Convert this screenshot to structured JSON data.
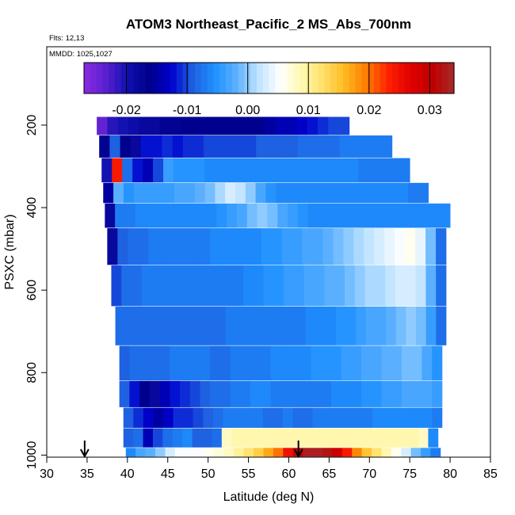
{
  "title": "ATOM3 Northeast_Pacific_2 MS_Abs_700nm",
  "info": [
    "Flts: 12,13",
    "MMDD: 1025,1027"
  ],
  "chart_data": {
    "type": "heatmap",
    "xlabel": "Latitude (deg N)",
    "ylabel": "PSXC (mbar)",
    "xlim": [
      30,
      85
    ],
    "ylim": [
      1005,
      10
    ],
    "xticks": [
      30,
      35,
      40,
      45,
      50,
      55,
      60,
      65,
      70,
      75,
      80,
      85
    ],
    "yticks": [
      200,
      400,
      600,
      800,
      1000
    ],
    "colorbar": {
      "range": [
        -0.027,
        0.034
      ],
      "ticks": [
        -0.02,
        -0.01,
        0.0,
        0.01,
        0.02,
        0.03
      ],
      "tick_labels": [
        "-0.02",
        "-0.01",
        "0.00",
        "0.01",
        "0.02",
        "0.03"
      ],
      "colors": [
        "#8a2be2",
        "#5a20d0",
        "#1010b0",
        "#00008b",
        "#0000cd",
        "#1e60e0",
        "#1e90ff",
        "#5cb0ff",
        "#bfe3ff",
        "#ffffff",
        "#fff8b0",
        "#ffe066",
        "#ffb820",
        "#ff7a00",
        "#ff2000",
        "#e00000",
        "#c00000",
        "#a52a2a"
      ]
    },
    "arrows": [
      34.7,
      61.2
    ],
    "bands": [
      {
        "p": 200,
        "lat_start": 36.2,
        "lat_end": 67.5,
        "values": [
          -0.024,
          -0.021,
          -0.02,
          -0.019,
          -0.018,
          -0.018,
          -0.017,
          -0.017,
          -0.016,
          -0.016,
          -0.016,
          -0.016,
          -0.016,
          -0.016,
          -0.016,
          -0.016,
          -0.015,
          -0.014,
          -0.014,
          -0.013,
          -0.012,
          -0.011,
          -0.01,
          -0.01
        ]
      },
      {
        "p": 250,
        "lat_start": 36.5,
        "lat_end": 72.8,
        "values": [
          -0.017,
          -0.009,
          -0.016,
          -0.018,
          -0.012,
          -0.012,
          -0.011,
          -0.012,
          -0.011,
          -0.011,
          -0.01,
          -0.01,
          -0.01,
          -0.01,
          -0.01,
          -0.009,
          -0.009,
          -0.009,
          -0.009,
          -0.008,
          -0.008,
          -0.008,
          -0.008,
          -0.007,
          -0.007,
          -0.007,
          -0.007,
          -0.007
        ]
      },
      {
        "p": 310,
        "lat_start": 36.8,
        "lat_end": 75.0,
        "values": [
          -0.02,
          0.024,
          -0.008,
          -0.012,
          -0.014,
          -0.01,
          -0.004,
          -0.005,
          -0.005,
          -0.005,
          -0.006,
          -0.006,
          -0.006,
          -0.006,
          -0.006,
          -0.006,
          -0.006,
          -0.006,
          -0.006,
          -0.006,
          -0.006,
          -0.006,
          -0.006,
          -0.006,
          -0.006,
          -0.007,
          -0.007,
          -0.007,
          -0.007,
          -0.007
        ]
      },
      {
        "p": 370,
        "lat_start": 37.0,
        "lat_end": 77.3,
        "values": [
          -0.015,
          -0.002,
          -0.005,
          -0.004,
          -0.004,
          -0.004,
          -0.004,
          -0.003,
          -0.003,
          -0.002,
          -0.001,
          0.001,
          0.003,
          0.002,
          0.0,
          -0.003,
          -0.005,
          -0.006,
          -0.006,
          -0.006,
          -0.006,
          -0.006,
          -0.006,
          -0.006,
          -0.006,
          -0.006,
          -0.006,
          -0.006,
          -0.006,
          -0.006,
          -0.007,
          -0.007
        ]
      },
      {
        "p": 410,
        "lat_start": 37.2,
        "lat_end": 80.0,
        "values": [
          -0.018,
          -0.007,
          -0.007,
          -0.006,
          -0.006,
          -0.006,
          -0.006,
          -0.006,
          -0.006,
          -0.006,
          -0.006,
          -0.005,
          -0.004,
          -0.003,
          -0.001,
          0.0,
          -0.001,
          -0.003,
          -0.004,
          -0.005,
          -0.006,
          -0.006,
          -0.006,
          -0.006,
          -0.006,
          -0.006,
          -0.006,
          -0.006,
          -0.006,
          -0.006,
          -0.006,
          -0.006,
          -0.006,
          -0.006
        ]
      },
      {
        "p": 490,
        "lat_start": 37.5,
        "lat_end": 79.5,
        "values": [
          -0.018,
          -0.009,
          -0.008,
          -0.008,
          -0.007,
          -0.007,
          -0.007,
          -0.007,
          -0.007,
          -0.007,
          -0.006,
          -0.006,
          -0.006,
          -0.006,
          -0.006,
          -0.005,
          -0.005,
          -0.004,
          -0.004,
          -0.003,
          -0.003,
          -0.002,
          -0.001,
          0.0,
          0.001,
          0.002,
          0.003,
          0.004,
          0.005,
          0.006,
          0.004,
          -0.001,
          -0.008
        ]
      },
      {
        "p": 590,
        "lat_start": 38.0,
        "lat_end": 79.5,
        "values": [
          -0.01,
          -0.008,
          -0.008,
          -0.007,
          -0.007,
          -0.007,
          -0.007,
          -0.007,
          -0.007,
          -0.007,
          -0.007,
          -0.007,
          -0.007,
          -0.006,
          -0.006,
          -0.005,
          -0.005,
          -0.004,
          -0.004,
          -0.003,
          -0.003,
          -0.002,
          -0.002,
          -0.001,
          0.0,
          0.001,
          0.001,
          0.002,
          0.003,
          0.003,
          0.002,
          -0.002,
          -0.008
        ]
      },
      {
        "p": 690,
        "lat_start": 38.5,
        "lat_end": 79.5,
        "values": [
          -0.008,
          -0.008,
          -0.008,
          -0.008,
          -0.008,
          -0.008,
          -0.008,
          -0.008,
          -0.008,
          -0.008,
          -0.008,
          -0.007,
          -0.007,
          -0.007,
          -0.007,
          -0.007,
          -0.007,
          -0.007,
          -0.007,
          -0.006,
          -0.006,
          -0.006,
          -0.005,
          -0.005,
          -0.004,
          -0.003,
          -0.003,
          -0.002,
          -0.001,
          0.0,
          -0.001,
          -0.004,
          -0.008
        ]
      },
      {
        "p": 780,
        "lat_start": 39.0,
        "lat_end": 79.0,
        "values": [
          -0.009,
          -0.008,
          -0.008,
          -0.008,
          -0.008,
          -0.007,
          -0.007,
          -0.007,
          -0.007,
          -0.008,
          -0.008,
          -0.007,
          -0.007,
          -0.007,
          -0.007,
          -0.006,
          -0.006,
          -0.006,
          -0.006,
          -0.005,
          -0.005,
          -0.005,
          -0.004,
          -0.004,
          -0.003,
          -0.003,
          -0.002,
          -0.002,
          -0.001,
          -0.001,
          -0.003,
          -0.005
        ]
      },
      {
        "p": 860,
        "lat_start": 39.0,
        "lat_end": 79.0,
        "values": [
          -0.009,
          -0.012,
          -0.016,
          -0.018,
          -0.014,
          -0.012,
          -0.011,
          -0.01,
          -0.009,
          -0.008,
          -0.008,
          -0.007,
          -0.007,
          -0.006,
          -0.006,
          -0.007,
          -0.007,
          -0.007,
          -0.007,
          -0.007,
          -0.007,
          -0.006,
          -0.006,
          -0.006,
          -0.005,
          -0.005,
          -0.004,
          -0.004,
          -0.003,
          -0.003,
          -0.003,
          -0.004
        ]
      },
      {
        "p": 910,
        "lat_start": 39.5,
        "lat_end": 79.0,
        "values": [
          -0.009,
          -0.011,
          -0.013,
          -0.015,
          -0.013,
          -0.011,
          -0.011,
          -0.01,
          -0.009,
          -0.008,
          -0.007,
          -0.007,
          -0.007,
          -0.007,
          -0.008,
          -0.008,
          -0.007,
          -0.008,
          -0.008,
          -0.007,
          -0.007,
          -0.007,
          -0.007,
          -0.007,
          -0.007,
          -0.006,
          -0.006,
          -0.006,
          -0.006,
          -0.006,
          -0.006,
          -0.007
        ]
      },
      {
        "p": 960,
        "lat_start": 39.5,
        "lat_end": 78.5,
        "values": [
          -0.009,
          -0.008,
          -0.014,
          -0.01,
          -0.008,
          -0.007,
          -0.006,
          -0.009,
          -0.009,
          -0.008,
          0.008,
          0.009,
          0.009,
          0.009,
          0.009,
          0.009,
          0.009,
          0.009,
          0.009,
          0.009,
          0.009,
          0.009,
          0.009,
          0.009,
          0.009,
          0.009,
          0.009,
          0.009,
          0.009,
          0.009,
          0.008,
          -0.006
        ]
      },
      {
        "p": 1005,
        "lat_start": 39.8,
        "lat_end": 78.8,
        "values": [
          -0.006,
          -0.003,
          -0.002,
          0.0,
          0.003,
          0.005,
          0.005,
          0.005,
          0.006,
          0.007,
          0.008,
          0.01,
          0.012,
          0.014,
          0.017,
          0.02,
          0.025,
          0.031,
          0.033,
          0.033,
          0.032,
          0.029,
          0.024,
          0.019,
          0.015,
          0.012,
          0.009,
          0.006,
          0.003,
          -0.001,
          -0.004,
          -0.007
        ]
      }
    ]
  }
}
